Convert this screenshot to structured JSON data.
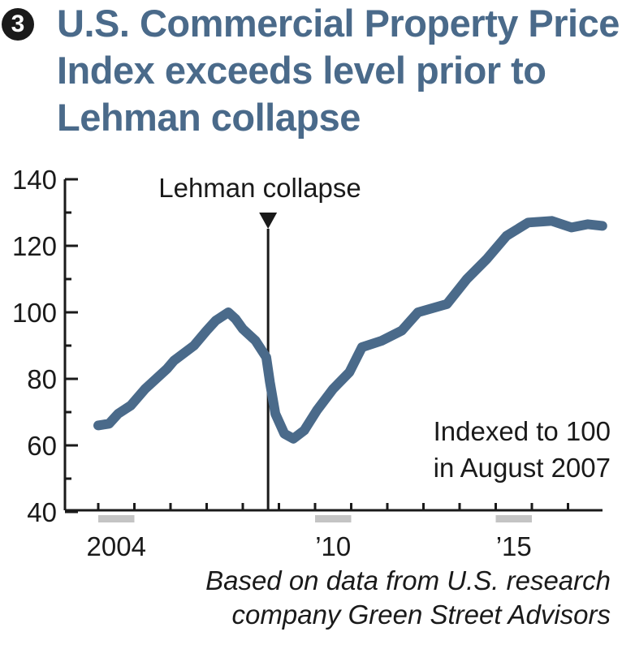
{
  "header": {
    "badge_number": "3",
    "title": "U.S. Commercial Property Price Index exceeds level prior to Lehman collapse"
  },
  "annotations": {
    "event_label": "Lehman collapse",
    "event_year": 2008.7,
    "note_line1": "Indexed to 100",
    "note_line2": "in August 2007"
  },
  "footer": {
    "source_line1": "Based on data from U.S. research",
    "source_line2": "company Green Street Advisors"
  },
  "colors": {
    "title": "#4a6a8a",
    "series": "#4a6a8a",
    "axis": "#1a1a1a",
    "year_band": "#c4c4c4"
  },
  "chart_data": {
    "type": "line",
    "title": "U.S. Commercial Property Price Index exceeds level prior to Lehman collapse",
    "xlabel": "",
    "ylabel": "",
    "ylim": [
      40,
      140
    ],
    "xlim": [
      2003.6,
      2018.0
    ],
    "grid": false,
    "y_ticks": [
      40,
      60,
      80,
      100,
      120,
      140
    ],
    "y_minor_ticks": [
      50,
      70,
      90,
      110,
      130
    ],
    "x_ticks": [
      2004,
      2005,
      2006,
      2007,
      2008,
      2009,
      2010,
      2011,
      2012,
      2013,
      2014,
      2015,
      2016,
      2017
    ],
    "x_tick_labels": [
      {
        "year": 2004,
        "label": "2004"
      },
      {
        "year": 2010,
        "label": "’10"
      },
      {
        "year": 2015,
        "label": "’15"
      }
    ],
    "highlight_years": [
      2004,
      2010,
      2015
    ],
    "series": [
      {
        "name": "Commercial Property Price Index",
        "x": [
          2004.0,
          2004.3,
          2004.55,
          2004.9,
          2005.3,
          2005.9,
          2006.1,
          2006.65,
          2007.0,
          2007.25,
          2007.6,
          2007.8,
          2008.0,
          2008.35,
          2008.65,
          2008.75,
          2008.9,
          2009.15,
          2009.4,
          2009.7,
          2010.05,
          2010.5,
          2010.95,
          2011.3,
          2011.85,
          2012.4,
          2012.85,
          2013.65,
          2014.2,
          2014.75,
          2015.3,
          2015.9,
          2016.55,
          2017.1,
          2017.55,
          2017.95
        ],
        "values": [
          66,
          66.5,
          69.5,
          72,
          77,
          83,
          85.5,
          90,
          94.5,
          97.5,
          100,
          98,
          95,
          91.5,
          86.5,
          79,
          69.5,
          63.5,
          62,
          64.5,
          70.5,
          77,
          82,
          89.5,
          91.5,
          94.5,
          100,
          102.5,
          110,
          116,
          123,
          127,
          127.5,
          125.5,
          126.5,
          126
        ]
      }
    ],
    "annotations": [
      "Lehman collapse",
      "Indexed to 100 in August 2007"
    ]
  }
}
